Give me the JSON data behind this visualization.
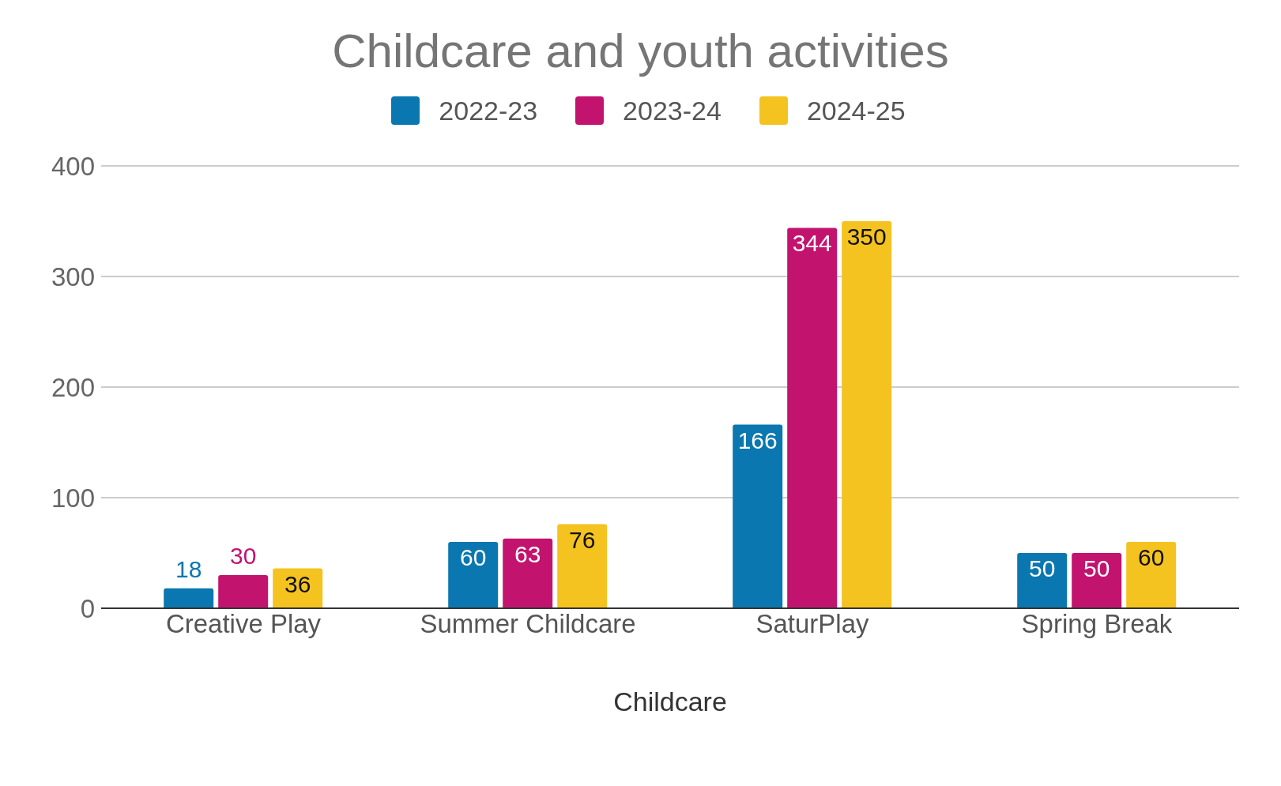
{
  "chart_data": {
    "type": "bar",
    "title": "Childcare and youth activities",
    "xlabel": "Childcare",
    "categories": [
      "Creative Play",
      "Summer Childcare",
      "SaturPlay",
      "Spring Break"
    ],
    "series": [
      {
        "name": "2022-23",
        "color": "#0a77b0",
        "values": [
          18,
          60,
          166,
          50
        ]
      },
      {
        "name": "2023-24",
        "color": "#c2136e",
        "values": [
          30,
          63,
          344,
          50
        ]
      },
      {
        "name": "2024-25",
        "color": "#f4c320",
        "values": [
          36,
          76,
          350,
          60
        ]
      }
    ],
    "ylim": [
      0,
      400
    ],
    "yticks": [
      0,
      100,
      200,
      300,
      400
    ],
    "grid": "y",
    "legend": "top",
    "data_labels": true
  }
}
